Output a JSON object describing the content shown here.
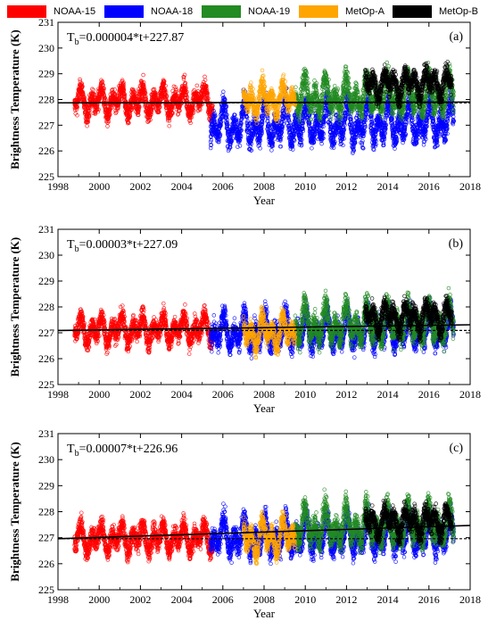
{
  "legend": [
    {
      "label": "NOAA-15",
      "color": "#ff0000"
    },
    {
      "label": "NOAA-18",
      "color": "#0000ff"
    },
    {
      "label": "NOAA-19",
      "color": "#228b22"
    },
    {
      "label": "MetOp-A",
      "color": "#ffa500"
    },
    {
      "label": "MetOp-B",
      "color": "#000000"
    }
  ],
  "chart_data": [
    {
      "type": "scatter",
      "panel_label": "(a)",
      "equation": {
        "prefix": "T",
        "subscript": "b",
        "rest": "=0.000004*t+227.87"
      },
      "xlabel": "Year",
      "ylabel": "Brightness Temperature (K)",
      "xlim": [
        1998,
        2018
      ],
      "ylim": [
        225,
        231
      ],
      "xticks": [
        1998,
        2000,
        2002,
        2004,
        2006,
        2008,
        2010,
        2012,
        2014,
        2016,
        2018
      ],
      "yticks": [
        225,
        226,
        227,
        228,
        229,
        230,
        231
      ],
      "trend_line": {
        "slope_per_year": 0.0015,
        "intercept_at_1998": 227.87
      },
      "reference_line": 227.87,
      "series": [
        {
          "name": "NOAA-15",
          "color": "#ff0000",
          "start": 1998.8,
          "end": 2005.5,
          "mean": 227.9,
          "amplitude": 0.55,
          "spread": 0.35
        },
        {
          "name": "NOAA-18",
          "color": "#0000ff",
          "start": 2005.4,
          "end": 2017.2,
          "mean": 227.0,
          "amplitude": 0.8,
          "spread": 0.45
        },
        {
          "name": "NOAA-19",
          "color": "#228b22",
          "start": 2009.5,
          "end": 2017.2,
          "mean": 228.1,
          "amplitude": 0.7,
          "spread": 0.45
        },
        {
          "name": "MetOp-A",
          "color": "#ffa500",
          "start": 2007.0,
          "end": 2009.5,
          "mean": 228.0,
          "amplitude": 0.6,
          "spread": 0.35
        },
        {
          "name": "MetOp-B",
          "color": "#000000",
          "start": 2012.9,
          "end": 2017.1,
          "mean": 228.6,
          "amplitude": 0.5,
          "spread": 0.35
        }
      ]
    },
    {
      "type": "scatter",
      "panel_label": "(b)",
      "equation": {
        "prefix": "T",
        "subscript": "b",
        "rest": "=0.00003*t+227.09"
      },
      "xlabel": "Year",
      "ylabel": "Brightness Temperature (K)",
      "xlim": [
        1998,
        2018
      ],
      "ylim": [
        225,
        231
      ],
      "xticks": [
        1998,
        2000,
        2002,
        2004,
        2006,
        2008,
        2010,
        2012,
        2014,
        2016,
        2018
      ],
      "yticks": [
        225,
        226,
        227,
        228,
        229,
        230,
        231
      ],
      "trend_line": {
        "slope_per_year": 0.011,
        "intercept_at_1998": 227.09
      },
      "reference_line": 227.09,
      "series": [
        {
          "name": "NOAA-15",
          "color": "#ff0000",
          "start": 1998.8,
          "end": 2005.5,
          "mean": 227.1,
          "amplitude": 0.55,
          "spread": 0.35
        },
        {
          "name": "NOAA-18",
          "color": "#0000ff",
          "start": 2005.4,
          "end": 2017.2,
          "mean": 227.0,
          "amplitude": 0.7,
          "spread": 0.4
        },
        {
          "name": "NOAA-19",
          "color": "#228b22",
          "start": 2009.5,
          "end": 2017.2,
          "mean": 227.3,
          "amplitude": 0.75,
          "spread": 0.45
        },
        {
          "name": "MetOp-A",
          "color": "#ffa500",
          "start": 2007.0,
          "end": 2009.5,
          "mean": 227.0,
          "amplitude": 0.65,
          "spread": 0.35
        },
        {
          "name": "MetOp-B",
          "color": "#000000",
          "start": 2012.9,
          "end": 2017.1,
          "mean": 227.6,
          "amplitude": 0.55,
          "spread": 0.35
        }
      ]
    },
    {
      "type": "scatter",
      "panel_label": "(c)",
      "equation": {
        "prefix": "T",
        "subscript": "b",
        "rest": "=0.00007*t+226.96"
      },
      "xlabel": "Year",
      "ylabel": "Brightness Temperature (K)",
      "xlim": [
        1998,
        2018
      ],
      "ylim": [
        225,
        231
      ],
      "xticks": [
        1998,
        2000,
        2002,
        2004,
        2006,
        2008,
        2010,
        2012,
        2014,
        2016,
        2018
      ],
      "yticks": [
        225,
        226,
        227,
        228,
        229,
        230,
        231
      ],
      "trend_line": {
        "slope_per_year": 0.0256,
        "intercept_at_1998": 226.96
      },
      "reference_line": 226.96,
      "series": [
        {
          "name": "NOAA-15",
          "color": "#ff0000",
          "start": 1998.8,
          "end": 2005.5,
          "mean": 226.95,
          "amplitude": 0.55,
          "spread": 0.35
        },
        {
          "name": "NOAA-18",
          "color": "#0000ff",
          "start": 2005.4,
          "end": 2017.2,
          "mean": 227.0,
          "amplitude": 0.7,
          "spread": 0.4
        },
        {
          "name": "NOAA-19",
          "color": "#228b22",
          "start": 2009.5,
          "end": 2017.2,
          "mean": 227.4,
          "amplitude": 0.75,
          "spread": 0.45
        },
        {
          "name": "MetOp-A",
          "color": "#ffa500",
          "start": 2007.0,
          "end": 2009.5,
          "mean": 227.0,
          "amplitude": 0.7,
          "spread": 0.35
        },
        {
          "name": "MetOp-B",
          "color": "#000000",
          "start": 2012.9,
          "end": 2017.1,
          "mean": 227.6,
          "amplitude": 0.55,
          "spread": 0.35
        }
      ]
    }
  ]
}
